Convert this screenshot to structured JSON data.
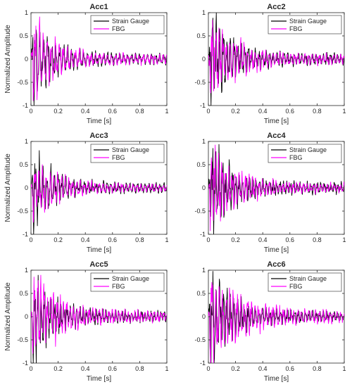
{
  "colors": {
    "strain": "#000000",
    "fbg": "#ff00ff",
    "axes": "#262626",
    "background": "#ffffff"
  },
  "chart_data": [
    {
      "type": "line",
      "title": "Acc1",
      "xlabel": "Time [s]",
      "ylabel": "Normalized Amplitude",
      "xlim": [
        0,
        1
      ],
      "ylim": [
        -1,
        1
      ],
      "xticks": [
        "0",
        "0.2",
        "0.4",
        "0.6",
        "0.8",
        "1"
      ],
      "yticks": [
        "-1",
        "-0.5",
        "0",
        "0.5",
        "1"
      ],
      "legend_position": "top-right",
      "grid": false,
      "series": [
        {
          "name": "Strain Gauge",
          "color": "#000000",
          "amplitude": 1.0,
          "decay": 7.2,
          "freq": 34,
          "phase": 0.2,
          "seed": 11
        },
        {
          "name": "FBG",
          "color": "#ff00ff",
          "amplitude": 0.95,
          "decay": 6.6,
          "freq": 34,
          "phase": 0.9,
          "seed": 23
        }
      ]
    },
    {
      "type": "line",
      "title": "Acc2",
      "xlabel": "Time [s]",
      "ylabel": "",
      "xlim": [
        0,
        1
      ],
      "ylim": [
        -1,
        1
      ],
      "xticks": [
        "0",
        "0.2",
        "0.4",
        "0.6",
        "0.8",
        "1"
      ],
      "yticks": [
        "-1",
        "-0.5",
        "0",
        "0.5",
        "1"
      ],
      "legend_position": "top-right",
      "grid": false,
      "series": [
        {
          "name": "Strain Gauge",
          "color": "#000000",
          "amplitude": 1.0,
          "decay": 6.0,
          "freq": 38,
          "phase": 0.4,
          "seed": 31
        },
        {
          "name": "FBG",
          "color": "#ff00ff",
          "amplitude": 1.0,
          "decay": 5.8,
          "freq": 38,
          "phase": 1.4,
          "seed": 47
        }
      ]
    },
    {
      "type": "line",
      "title": "Acc3",
      "xlabel": "Time [s]",
      "ylabel": "Normalized Amplitude",
      "xlim": [
        0,
        1
      ],
      "ylim": [
        -1,
        1
      ],
      "xticks": [
        "0",
        "0.2",
        "0.4",
        "0.6",
        "0.8",
        "1"
      ],
      "yticks": [
        "-1",
        "-0.5",
        "0",
        "0.5",
        "1"
      ],
      "legend_position": "top-right",
      "grid": false,
      "series": [
        {
          "name": "Strain Gauge",
          "color": "#000000",
          "amplitude": 0.9,
          "decay": 6.8,
          "freq": 36,
          "phase": 0.1,
          "seed": 53
        },
        {
          "name": "FBG",
          "color": "#ff00ff",
          "amplitude": 0.62,
          "decay": 5.2,
          "freq": 36,
          "phase": 1.1,
          "seed": 67
        }
      ]
    },
    {
      "type": "line",
      "title": "Acc4",
      "xlabel": "Time [s]",
      "ylabel": "",
      "xlim": [
        0,
        1
      ],
      "ylim": [
        -1,
        1
      ],
      "xticks": [
        "0",
        "0.2",
        "0.4",
        "0.6",
        "0.8",
        "1"
      ],
      "yticks": [
        "-1",
        "-0.5",
        "0",
        "0.5",
        "1"
      ],
      "legend_position": "top-right",
      "grid": false,
      "series": [
        {
          "name": "Strain Gauge",
          "color": "#000000",
          "amplitude": 1.0,
          "decay": 6.2,
          "freq": 40,
          "phase": 0.7,
          "seed": 71
        },
        {
          "name": "FBG",
          "color": "#ff00ff",
          "amplitude": 0.88,
          "decay": 5.6,
          "freq": 40,
          "phase": 1.9,
          "seed": 89
        }
      ]
    },
    {
      "type": "line",
      "title": "Acc5",
      "xlabel": "Time [s]",
      "ylabel": "Normalized Amplitude",
      "xlim": [
        0,
        1
      ],
      "ylim": [
        -1,
        1
      ],
      "xticks": [
        "0",
        "0.2",
        "0.4",
        "0.6",
        "0.8",
        "1"
      ],
      "yticks": [
        "-1",
        "-0.5",
        "0",
        "0.5",
        "1"
      ],
      "legend_position": "top-right",
      "grid": false,
      "series": [
        {
          "name": "Strain Gauge",
          "color": "#000000",
          "amplitude": 1.0,
          "decay": 6.4,
          "freq": 42,
          "phase": 0.3,
          "seed": 97
        },
        {
          "name": "FBG",
          "color": "#ff00ff",
          "amplitude": 1.0,
          "decay": 5.4,
          "freq": 42,
          "phase": 1.2,
          "seed": 103
        }
      ]
    },
    {
      "type": "line",
      "title": "Acc6",
      "xlabel": "Time [s]",
      "ylabel": "",
      "xlim": [
        0,
        1
      ],
      "ylim": [
        -1,
        1
      ],
      "xticks": [
        "0",
        "0.2",
        "0.4",
        "0.6",
        "0.8",
        "1"
      ],
      "yticks": [
        "-1",
        "-0.5",
        "0",
        "0.5",
        "1"
      ],
      "legend_position": "top-right",
      "grid": false,
      "series": [
        {
          "name": "Strain Gauge",
          "color": "#000000",
          "amplitude": 1.0,
          "decay": 6.0,
          "freq": 38,
          "phase": 0.5,
          "seed": 113
        },
        {
          "name": "FBG",
          "color": "#ff00ff",
          "amplitude": 1.0,
          "decay": 4.6,
          "freq": 38,
          "phase": 1.6,
          "seed": 127
        }
      ]
    }
  ]
}
